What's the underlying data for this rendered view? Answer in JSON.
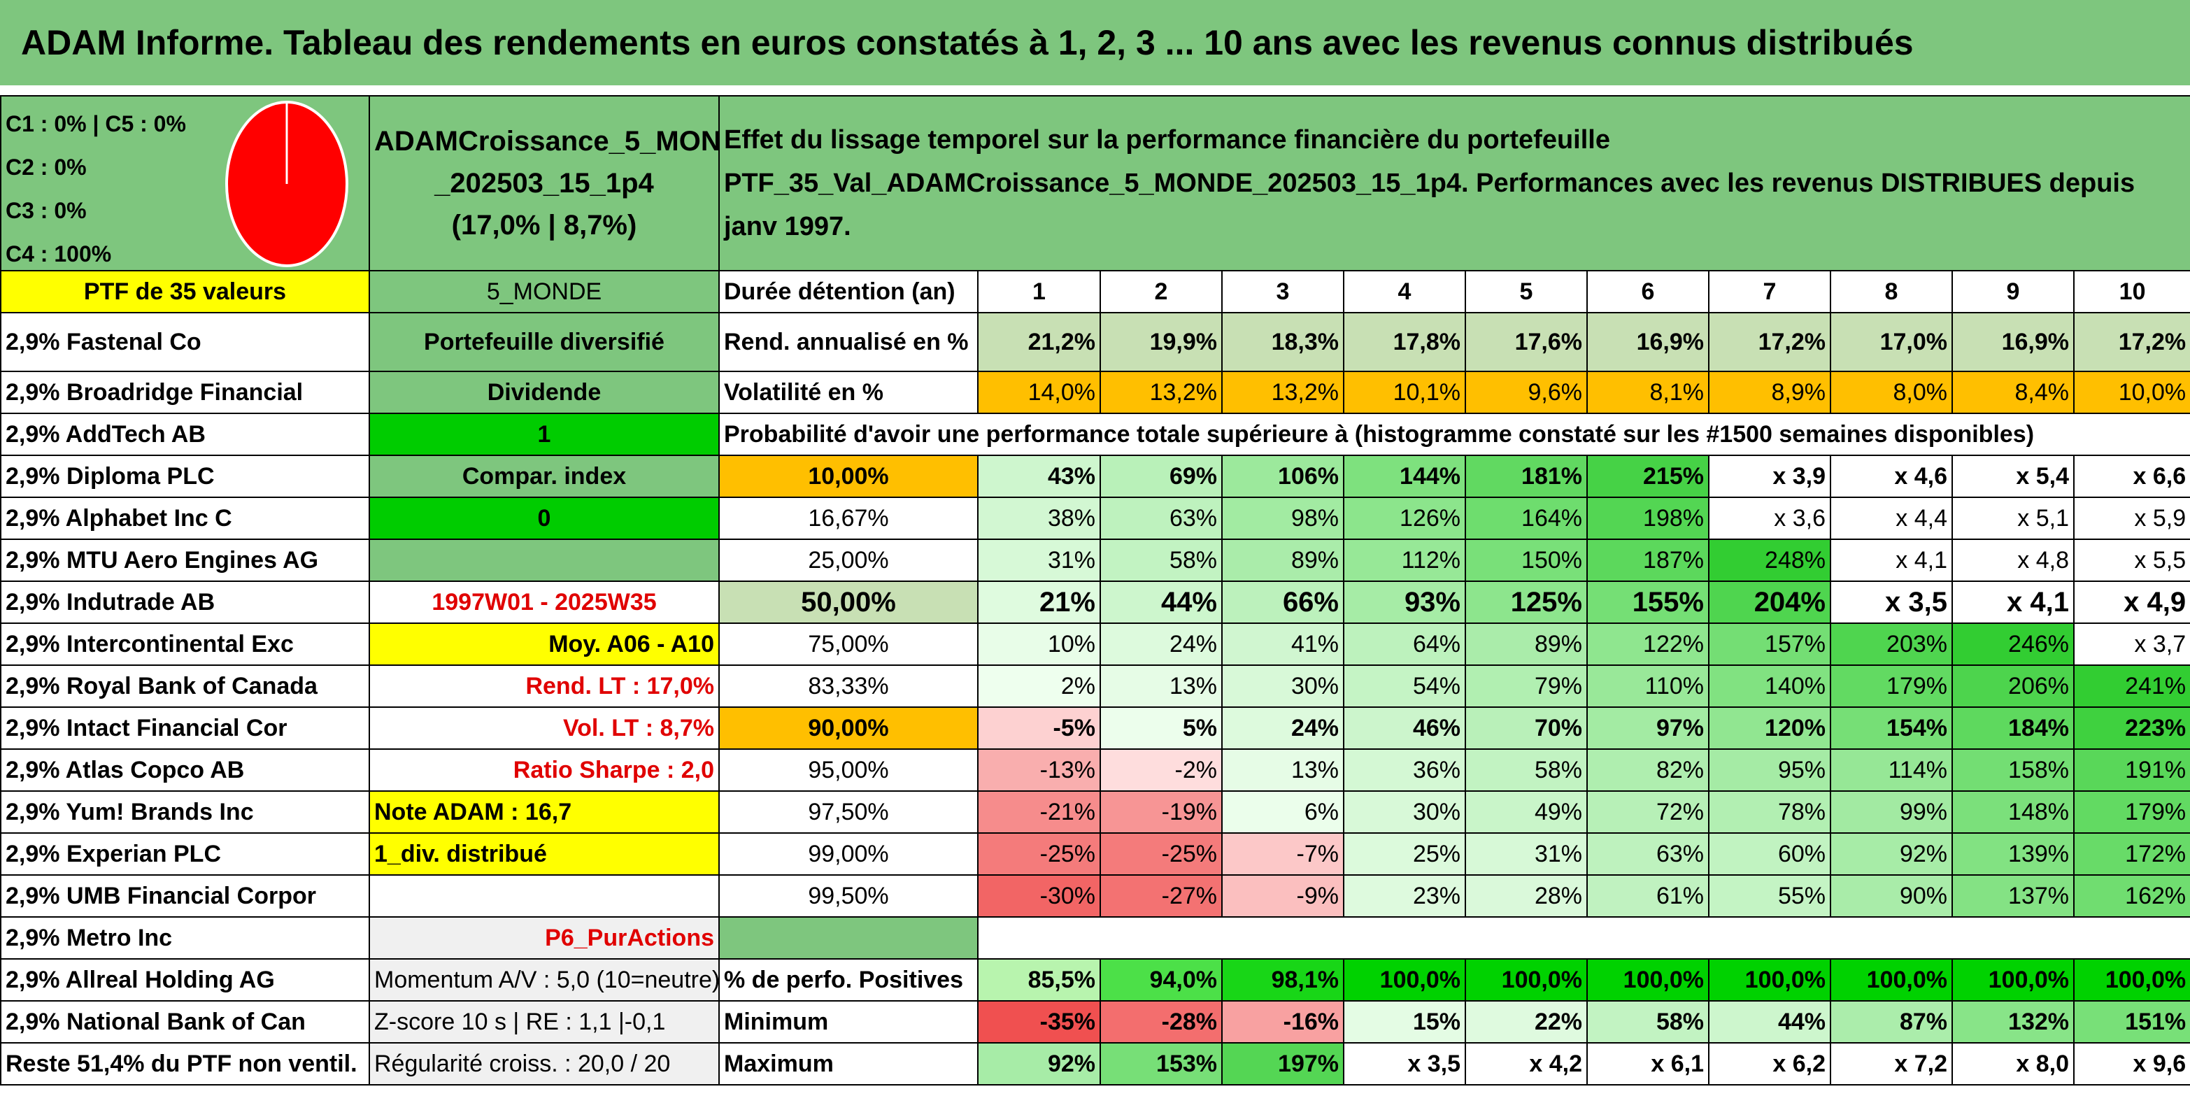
{
  "title": "ADAM Informe. Tableau des rendements en euros constatés à 1, 2, 3 ... 10 ans avec les revenus connus distribués",
  "pie": {
    "lines": [
      "C1 : 0% | C5 : 0%",
      "C2 : 0%",
      "C3 : 0%",
      "C4 : 100%"
    ],
    "fill": "#ff0000",
    "stroke": "#ffffff"
  },
  "portfolio": {
    "name_line1": "ADAMCroissance_5_MONDE",
    "name_line2": "_202503_15_1p4",
    "name_line3": "(17,0% | 8,7%)",
    "desc_line1": "Effet du lissage temporel sur la performance financière du portefeuille",
    "desc_line2": "PTF_35_Val_ADAMCroissance_5_MONDE_202503_15_1p4. Performances avec les revenus DISTRIBUES depuis janv 1997."
  },
  "left_header": "PTF de 35 valeurs",
  "holdings": [
    "2,9% Fastenal Co",
    "2,9% Broadridge Financial",
    "2,9% AddTech AB",
    "2,9% Diploma PLC",
    "2,9% Alphabet Inc C",
    "2,9% MTU Aero Engines AG",
    "2,9% Indutrade AB",
    "2,9% Intercontinental Exc",
    "2,9% Royal Bank of Canada",
    "2,9% Intact Financial Cor",
    "2,9% Atlas Copco AB",
    "2,9% Yum! Brands Inc",
    "2,9% Experian PLC",
    "2,9% UMB Financial Corpor",
    "2,9% Metro Inc",
    "2,9% Allreal Holding AG",
    "2,9% National Bank of Can",
    "Reste 51,4% du PTF non ventil."
  ],
  "info": [
    "5_MONDE",
    "Portefeuille diversifié",
    "Dividende",
    "1",
    "Compar. index",
    "0",
    "",
    "1997W01 - 2025W35",
    "Moy. A06 - A10",
    "Rend. LT : 17,0%",
    "Vol. LT : 8,7%",
    "Ratio Sharpe : 2,0",
    "Note ADAM : 16,7",
    "1_div. distribué",
    "",
    "P6_PurActions",
    "Momentum A/V : 5,0 (10=neutre)",
    "Z-score 10 s | RE : 1,1 |-0,1",
    "Régularité croiss. : 20,0 / 20"
  ],
  "periods_label": "Durée détention (an)",
  "periods": [
    "1",
    "2",
    "3",
    "4",
    "5",
    "6",
    "7",
    "8",
    "9",
    "10"
  ],
  "rend_label": "Rend. annualisé en %",
  "rend": [
    "21,2%",
    "19,9%",
    "18,3%",
    "17,8%",
    "17,6%",
    "16,9%",
    "17,2%",
    "17,0%",
    "16,9%",
    "17,2%"
  ],
  "vol_label": "Volatilité en %",
  "vol": [
    "14,0%",
    "13,2%",
    "13,2%",
    "10,1%",
    "9,6%",
    "8,1%",
    "8,9%",
    "8,0%",
    "8,4%",
    "10,0%"
  ],
  "prob_header": "Probabilité d'avoir une performance totale supérieure à (histogramme constaté sur les #1500 semaines disponibles)",
  "prob": [
    {
      "p": "10,00%",
      "v": [
        "43%",
        "69%",
        "106%",
        "144%",
        "181%",
        "215%",
        "x 3,9",
        "x 4,6",
        "x 5,4",
        "x 6,6"
      ]
    },
    {
      "p": "16,67%",
      "v": [
        "38%",
        "63%",
        "98%",
        "126%",
        "164%",
        "198%",
        "x 3,6",
        "x 4,4",
        "x 5,1",
        "x 5,9"
      ]
    },
    {
      "p": "25,00%",
      "v": [
        "31%",
        "58%",
        "89%",
        "112%",
        "150%",
        "187%",
        "248%",
        "x 4,1",
        "x 4,8",
        "x 5,5"
      ]
    },
    {
      "p": "50,00%",
      "v": [
        "21%",
        "44%",
        "66%",
        "93%",
        "125%",
        "155%",
        "204%",
        "x 3,5",
        "x 4,1",
        "x 4,9"
      ]
    },
    {
      "p": "75,00%",
      "v": [
        "10%",
        "24%",
        "41%",
        "64%",
        "89%",
        "122%",
        "157%",
        "203%",
        "246%",
        "x 3,7"
      ]
    },
    {
      "p": "83,33%",
      "v": [
        "2%",
        "13%",
        "30%",
        "54%",
        "79%",
        "110%",
        "140%",
        "179%",
        "206%",
        "241%"
      ]
    },
    {
      "p": "90,00%",
      "v": [
        "-5%",
        "5%",
        "24%",
        "46%",
        "70%",
        "97%",
        "120%",
        "154%",
        "184%",
        "223%"
      ]
    },
    {
      "p": "95,00%",
      "v": [
        "-13%",
        "-2%",
        "13%",
        "36%",
        "58%",
        "82%",
        "95%",
        "114%",
        "158%",
        "191%"
      ]
    },
    {
      "p": "97,50%",
      "v": [
        "-21%",
        "-19%",
        "6%",
        "30%",
        "49%",
        "72%",
        "78%",
        "99%",
        "148%",
        "179%"
      ]
    },
    {
      "p": "99,00%",
      "v": [
        "-25%",
        "-25%",
        "-7%",
        "25%",
        "31%",
        "63%",
        "60%",
        "92%",
        "139%",
        "172%"
      ]
    },
    {
      "p": "99,50%",
      "v": [
        "-30%",
        "-27%",
        "-9%",
        "23%",
        "28%",
        "61%",
        "55%",
        "90%",
        "137%",
        "162%"
      ]
    }
  ],
  "pos_label": "% de perfo. Positives",
  "pos": [
    "85,5%",
    "94,0%",
    "98,1%",
    "100,0%",
    "100,0%",
    "100,0%",
    "100,0%",
    "100,0%",
    "100,0%",
    "100,0%"
  ],
  "min_label": "Minimum",
  "min": [
    "-35%",
    "-28%",
    "-16%",
    "15%",
    "22%",
    "58%",
    "44%",
    "87%",
    "132%",
    "151%"
  ],
  "max_label": "Maximum",
  "max": [
    "92%",
    "153%",
    "197%",
    "x 3,5",
    "x 4,2",
    "x 6,1",
    "x 6,2",
    "x 7,2",
    "x 8,0",
    "x 9,6"
  ],
  "colors": {
    "title_green": "#7ec67e",
    "highlight_yellow": "#ffff00",
    "bright_green": "#00cc00",
    "orange": "#ffbf00",
    "pale_green": "#c8e0b4",
    "red_text": "#e00000"
  }
}
